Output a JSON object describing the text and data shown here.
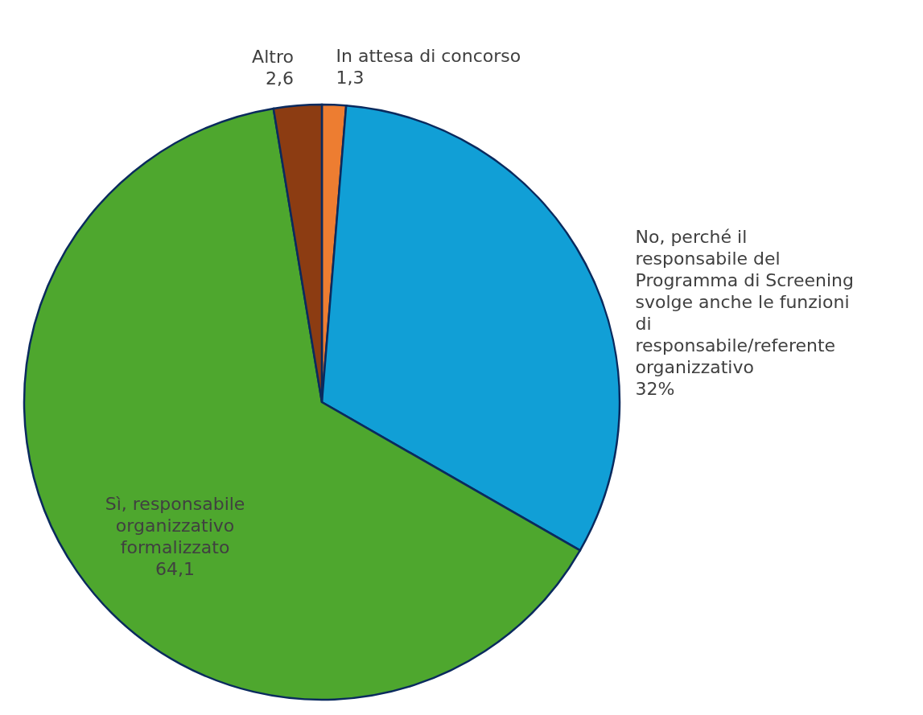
{
  "chart_data": {
    "type": "pie",
    "categories": [
      "In attesa di concorso",
      "No, perché il responsabile del Programma di Screening svolge anche le funzioni di responsabile/referente organizzativo",
      "Sì, responsabile organizzativo formalizzato",
      "Altro"
    ],
    "values": [
      1.3,
      32,
      64.1,
      2.6
    ],
    "colors": [
      "#ed7d31",
      "#119fd6",
      "#4ea72e",
      "#8c3c12"
    ],
    "value_labels": [
      "1,3",
      "32%",
      "64,1",
      "2,6"
    ]
  }
}
